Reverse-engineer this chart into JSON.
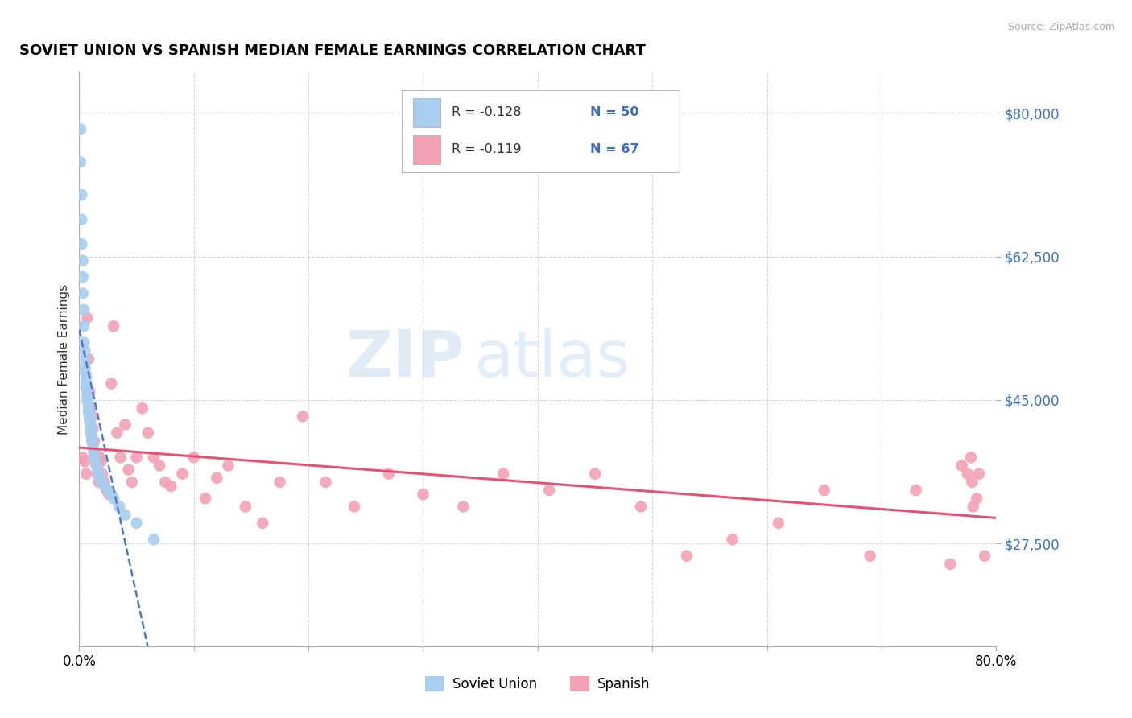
{
  "title": "SOVIET UNION VS SPANISH MEDIAN FEMALE EARNINGS CORRELATION CHART",
  "source": "Source: ZipAtlas.com",
  "ylabel": "Median Female Earnings",
  "xlim": [
    0.0,
    0.8
  ],
  "ylim": [
    15000,
    85000
  ],
  "yticks": [
    27500,
    45000,
    62500,
    80000
  ],
  "ytick_labels": [
    "$27,500",
    "$45,000",
    "$62,500",
    "$80,000"
  ],
  "xticks": [
    0.0,
    0.1,
    0.2,
    0.3,
    0.4,
    0.5,
    0.6,
    0.7,
    0.8
  ],
  "xtick_labels": [
    "0.0%",
    "",
    "",
    "",
    "",
    "",
    "",
    "",
    "80.0%"
  ],
  "legend_r1": "-0.128",
  "legend_n1": "50",
  "legend_r2": "-0.119",
  "legend_n2": "67",
  "blue_color": "#A8CEF0",
  "pink_color": "#F4A0B5",
  "blue_line_color": "#4A7AC8",
  "pink_line_color": "#E85075",
  "background_color": "#FFFFFF",
  "watermark_zip": "ZIP",
  "watermark_atlas": "atlas",
  "soviet_x": [
    0.001,
    0.001,
    0.002,
    0.002,
    0.002,
    0.003,
    0.003,
    0.003,
    0.004,
    0.004,
    0.004,
    0.005,
    0.005,
    0.005,
    0.005,
    0.006,
    0.006,
    0.006,
    0.006,
    0.007,
    0.007,
    0.007,
    0.008,
    0.008,
    0.008,
    0.009,
    0.009,
    0.01,
    0.01,
    0.01,
    0.011,
    0.011,
    0.012,
    0.012,
    0.013,
    0.013,
    0.014,
    0.015,
    0.016,
    0.017,
    0.018,
    0.02,
    0.022,
    0.025,
    0.028,
    0.03,
    0.035,
    0.04,
    0.05,
    0.065
  ],
  "soviet_y": [
    78000,
    74000,
    70000,
    67000,
    64000,
    62000,
    60000,
    58000,
    56000,
    54000,
    52000,
    51000,
    50000,
    49000,
    48500,
    48000,
    47500,
    47000,
    46500,
    46000,
    45500,
    45000,
    44500,
    44000,
    43500,
    43000,
    42500,
    42000,
    41500,
    41000,
    40500,
    40000,
    39500,
    39000,
    38500,
    38000,
    37500,
    37000,
    36500,
    36000,
    35500,
    35000,
    34500,
    34000,
    33500,
    33000,
    32000,
    31000,
    30000,
    28000
  ],
  "spanish_x": [
    0.003,
    0.005,
    0.006,
    0.007,
    0.008,
    0.009,
    0.01,
    0.011,
    0.012,
    0.013,
    0.014,
    0.015,
    0.016,
    0.017,
    0.018,
    0.019,
    0.02,
    0.022,
    0.024,
    0.026,
    0.028,
    0.03,
    0.033,
    0.036,
    0.04,
    0.043,
    0.046,
    0.05,
    0.055,
    0.06,
    0.065,
    0.07,
    0.075,
    0.08,
    0.09,
    0.1,
    0.11,
    0.12,
    0.13,
    0.145,
    0.16,
    0.175,
    0.195,
    0.215,
    0.24,
    0.27,
    0.3,
    0.335,
    0.37,
    0.41,
    0.45,
    0.49,
    0.53,
    0.57,
    0.61,
    0.65,
    0.69,
    0.73,
    0.76,
    0.77,
    0.775,
    0.778,
    0.779,
    0.78,
    0.783,
    0.785,
    0.79
  ],
  "spanish_y": [
    38000,
    37500,
    36000,
    55000,
    50000,
    46000,
    44000,
    43000,
    41500,
    40000,
    38500,
    37000,
    36000,
    35000,
    38000,
    37500,
    36000,
    35000,
    34000,
    33500,
    47000,
    54000,
    41000,
    38000,
    42000,
    36500,
    35000,
    38000,
    44000,
    41000,
    38000,
    37000,
    35000,
    34500,
    36000,
    38000,
    33000,
    35500,
    37000,
    32000,
    30000,
    35000,
    43000,
    35000,
    32000,
    36000,
    33500,
    32000,
    36000,
    34000,
    36000,
    32000,
    26000,
    28000,
    30000,
    34000,
    26000,
    34000,
    25000,
    37000,
    36000,
    38000,
    35000,
    32000,
    33000,
    36000,
    26000
  ]
}
